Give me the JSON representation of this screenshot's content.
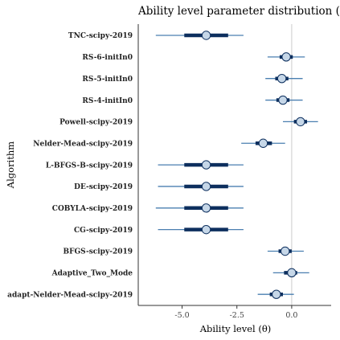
{
  "chart_data": {
    "type": "interval",
    "title": "Ability level parameter distribution (B",
    "xlabel": "Ability level (θ)",
    "ylabel": "Algorithm",
    "xlim": [
      -7.0,
      1.8
    ],
    "x_ticks": [
      -5.0,
      -2.5,
      0.0
    ],
    "x_tick_labels": [
      "-5.0",
      "-2.5",
      "0.0"
    ],
    "reference_line": 0.0,
    "grid": false,
    "categories": [
      "TNC-scipy-2019",
      "RS-6-initIn0",
      "RS-5-initIn0",
      "RS-4-initIn0",
      "Powell-scipy-2019",
      "Nelder-Mead-scipy-2019",
      "L-BFGS-B-scipy-2019",
      "DE-scipy-2019",
      "COBYLA-scipy-2019",
      "CG-scipy-2019",
      "BFGS-scipy-2019",
      "Adaptive_Two_Mode",
      "adapt-Nelder-Mead-scipy-2019"
    ],
    "median": [
      -3.9,
      -0.25,
      -0.45,
      -0.4,
      0.4,
      -1.3,
      -3.9,
      -3.9,
      -3.9,
      -3.9,
      -0.3,
      0.0,
      -0.7
    ],
    "inner_lo": [
      -4.9,
      -0.55,
      -0.75,
      -0.7,
      0.1,
      -1.65,
      -4.9,
      -4.9,
      -4.9,
      -4.9,
      -0.6,
      -0.35,
      -1.0
    ],
    "inner_hi": [
      -2.9,
      0.05,
      -0.15,
      -0.1,
      0.7,
      -0.9,
      -2.9,
      -2.9,
      -2.9,
      -2.9,
      0.0,
      0.25,
      -0.4
    ],
    "outer_lo": [
      -6.2,
      -1.1,
      -1.2,
      -1.2,
      -0.4,
      -2.3,
      -6.1,
      -6.1,
      -6.2,
      -6.1,
      -1.1,
      -0.85,
      -1.55
    ],
    "outer_hi": [
      -2.2,
      0.6,
      0.5,
      0.5,
      1.2,
      -0.3,
      -2.2,
      -2.2,
      -2.2,
      -2.2,
      0.55,
      0.8,
      0.1
    ]
  },
  "colors": {
    "outer_line": "#4a7fb0",
    "inner_line": "#0d2f5e",
    "point_fill": "#c6d7e8",
    "point_stroke": "#0d2f5e",
    "reference_line": "#cccccc",
    "axis": "#333333"
  }
}
